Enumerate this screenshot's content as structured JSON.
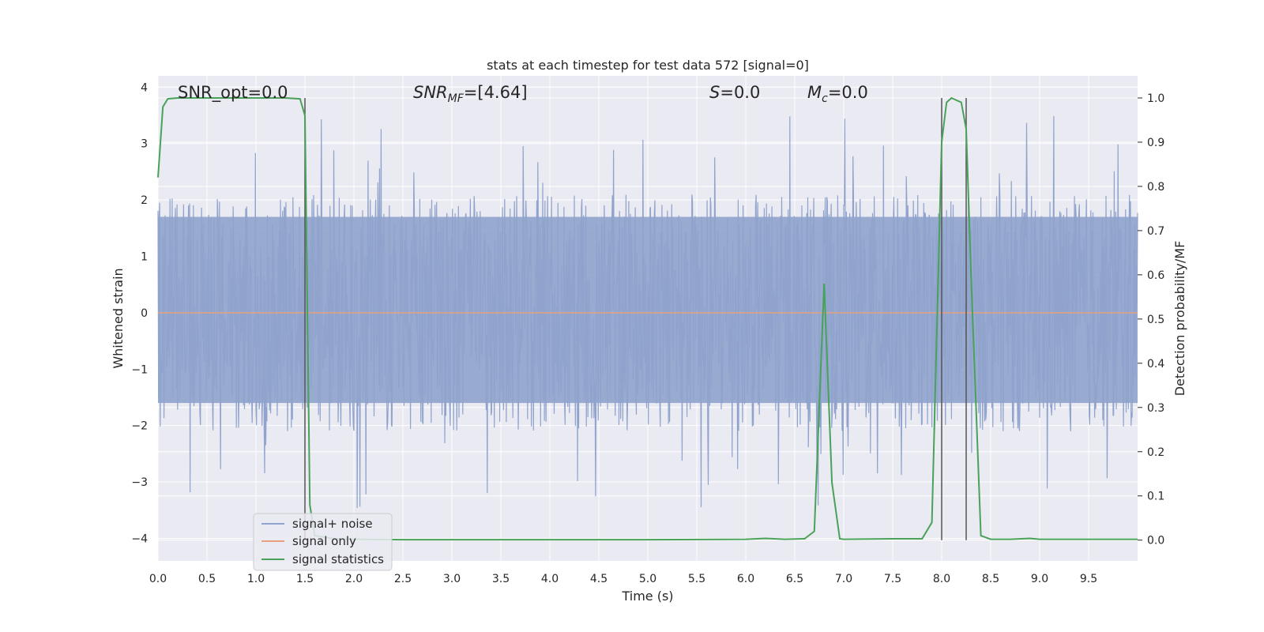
{
  "chart_data": {
    "type": "line",
    "title": "stats at each timestep for test data 572 [signal=0]",
    "xlabel": "Time (s)",
    "ylabel": "Whitened strain",
    "y2label": "Detection probability/MF",
    "xlim": [
      0.0,
      10.0
    ],
    "ylim": [
      -4.4,
      4.2
    ],
    "y2lim": [
      -0.047,
      1.05
    ],
    "xticks": [
      "0.0",
      "0.5",
      "1.0",
      "1.5",
      "2.0",
      "2.5",
      "3.0",
      "3.5",
      "4.0",
      "4.5",
      "5.0",
      "5.5",
      "6.0",
      "6.5",
      "7.0",
      "7.5",
      "8.0",
      "8.5",
      "9.0",
      "9.5"
    ],
    "yticks": [
      "4",
      "3",
      "2",
      "1",
      "0",
      "−1",
      "−2",
      "−3",
      "−4"
    ],
    "y2ticks": [
      "1.0",
      "0.9",
      "0.8",
      "0.7",
      "0.6",
      "0.5",
      "0.4",
      "0.3",
      "0.2",
      "0.1",
      "0.0"
    ],
    "grid": true,
    "legend_position": "lower-left",
    "annotations": {
      "snr_opt": "SNR_opt=0.0",
      "snr_mf_sym": "SNR",
      "snr_mf_sub": "MF",
      "snr_mf_val": "=[4.64]",
      "s_sym": "S",
      "s_val": "=0.0",
      "mc_sym": "M",
      "mc_sub": "c",
      "mc_val": "=0.0"
    },
    "series": [
      {
        "name": "signal+ noise",
        "color": "#8fa3cc",
        "description_type": "noise",
        "envelope_upper": 2.3,
        "envelope_lower": -2.2
      },
      {
        "name": "signal only",
        "color": "#e8a07f",
        "x": [
          0.0,
          10.0
        ],
        "y": [
          0.0,
          0.0
        ]
      },
      {
        "name": "signal statistics",
        "color": "#4aa15a",
        "axis": "right",
        "x": [
          0.0,
          0.05,
          0.1,
          0.2,
          0.5,
          1.0,
          1.3,
          1.45,
          1.5,
          1.55,
          1.6,
          1.8,
          2.0,
          2.5,
          3.0,
          4.0,
          5.0,
          6.0,
          6.2,
          6.4,
          6.6,
          6.7,
          6.8,
          6.88,
          6.96,
          7.0,
          7.5,
          7.8,
          7.9,
          8.0,
          8.05,
          8.1,
          8.2,
          8.25,
          8.3,
          8.4,
          8.5,
          8.7,
          8.9,
          9.0,
          9.5,
          10.0
        ],
        "y": [
          0.82,
          0.98,
          0.998,
          1.0,
          1.0,
          1.0,
          1.0,
          0.998,
          0.96,
          0.08,
          0.01,
          0.003,
          0.002,
          0.001,
          0.001,
          0.001,
          0.001,
          0.002,
          0.004,
          0.002,
          0.003,
          0.02,
          0.58,
          0.13,
          0.003,
          0.002,
          0.003,
          0.003,
          0.04,
          0.9,
          0.99,
          1.0,
          0.99,
          0.93,
          0.6,
          0.01,
          0.002,
          0.002,
          0.004,
          0.002,
          0.002,
          0.002
        ]
      }
    ],
    "vlines": [
      {
        "x": 1.5,
        "color": "#555555"
      },
      {
        "x": 8.0,
        "color": "#555555"
      },
      {
        "x": 8.25,
        "color": "#555555"
      }
    ]
  }
}
